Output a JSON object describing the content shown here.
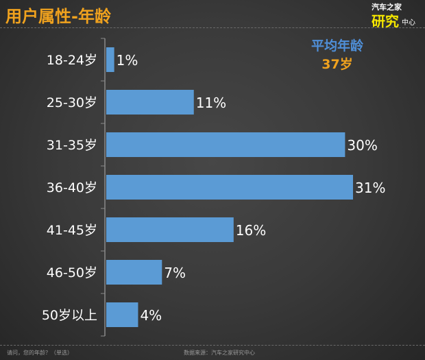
{
  "title": "用户属性-年龄",
  "logo": {
    "line1": "汽车之家",
    "line2": "研究",
    "line3": "中心"
  },
  "average": {
    "label": "平均年龄",
    "value": "37岁"
  },
  "footer": {
    "question": "请问，您的年龄？（单选）",
    "source": "数据来源：汽车之家研究中心"
  },
  "colors": {
    "bar": "#5b9bd5",
    "title": "#f0a21e",
    "avg_label": "#4f8fd8"
  },
  "chart_data": {
    "type": "bar",
    "orientation": "horizontal",
    "categories": [
      "18-24岁",
      "25-30岁",
      "31-35岁",
      "36-40岁",
      "41-45岁",
      "46-50岁",
      "50岁以上"
    ],
    "values": [
      1,
      11,
      30,
      31,
      16,
      7,
      4
    ],
    "data_labels": [
      "1%",
      "11%",
      "30%",
      "31%",
      "16%",
      "7%",
      "4%"
    ],
    "xlim": [
      0,
      31
    ],
    "grid": false
  }
}
